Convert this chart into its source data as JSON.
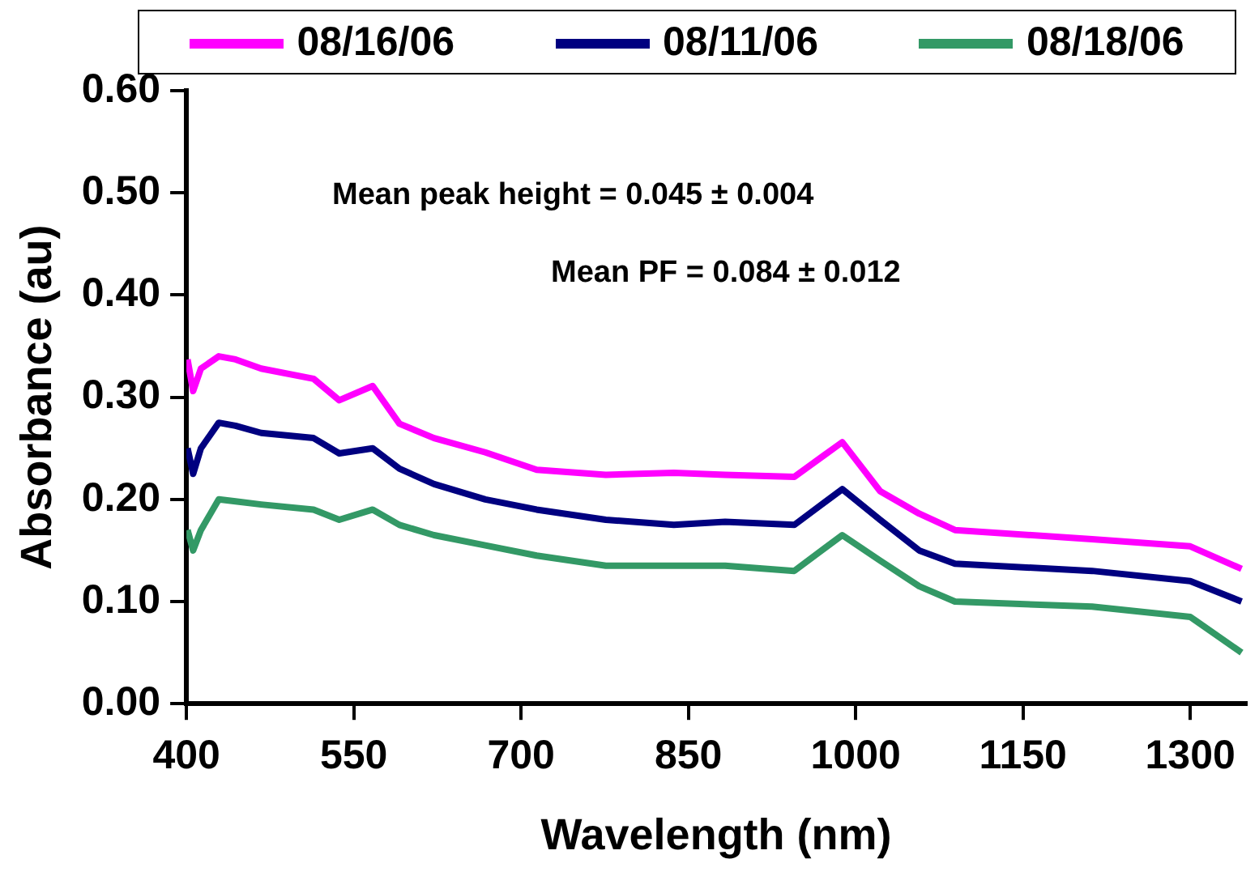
{
  "chart_data": {
    "type": "line",
    "xlabel": "Wavelength (nm)",
    "ylabel": "Absorbance (au)",
    "x": [
      401,
      406,
      413,
      429,
      444,
      467,
      514,
      537,
      567,
      591,
      622,
      668,
      714,
      776,
      837,
      883,
      945,
      988,
      1022,
      1057,
      1089,
      1212,
      1300,
      1346
    ],
    "series": [
      {
        "name": "08/16/06",
        "color": "#ff00ff",
        "values": [
          0.337,
          0.306,
          0.328,
          0.34,
          0.337,
          0.328,
          0.318,
          0.297,
          0.311,
          0.274,
          0.26,
          0.246,
          0.229,
          0.224,
          0.226,
          0.224,
          0.222,
          0.256,
          0.208,
          0.186,
          0.17,
          0.161,
          0.154,
          0.132
        ]
      },
      {
        "name": "08/11/06",
        "color": "#000080",
        "values": [
          0.25,
          0.225,
          0.25,
          0.275,
          0.272,
          0.265,
          0.26,
          0.245,
          0.25,
          0.23,
          0.215,
          0.2,
          0.19,
          0.18,
          0.175,
          0.178,
          0.175,
          0.21,
          0.18,
          0.15,
          0.137,
          0.13,
          0.12,
          0.1
        ]
      },
      {
        "name": "08/18/06",
        "color": "#339966",
        "values": [
          0.17,
          0.15,
          0.17,
          0.2,
          0.198,
          0.195,
          0.19,
          0.18,
          0.19,
          0.175,
          0.165,
          0.155,
          0.145,
          0.135,
          0.135,
          0.135,
          0.13,
          0.165,
          0.14,
          0.115,
          0.1,
          0.095,
          0.085,
          0.05
        ]
      }
    ],
    "xlim": [
      400,
      1350
    ],
    "xticks": [
      400,
      550,
      700,
      850,
      1000,
      1150,
      1300
    ],
    "ylim": [
      0,
      0.6
    ],
    "yticks": [
      {
        "value": 0,
        "label": "0.00"
      },
      {
        "value": 0.1,
        "label": "0.10"
      },
      {
        "value": 0.2,
        "label": "0.20"
      },
      {
        "value": 0.3,
        "label": "0.30"
      },
      {
        "value": 0.4,
        "label": "0.40"
      },
      {
        "value": 0.5,
        "label": "0.50"
      },
      {
        "value": 0.6,
        "label": "0.60"
      }
    ],
    "grid": false,
    "legend": "top",
    "marker": "none",
    "line_style": "solid",
    "annotations": [
      "Mean peak height = 0.045 ± 0.004",
      "Mean PF = 0.084 ± 0.012"
    ]
  }
}
